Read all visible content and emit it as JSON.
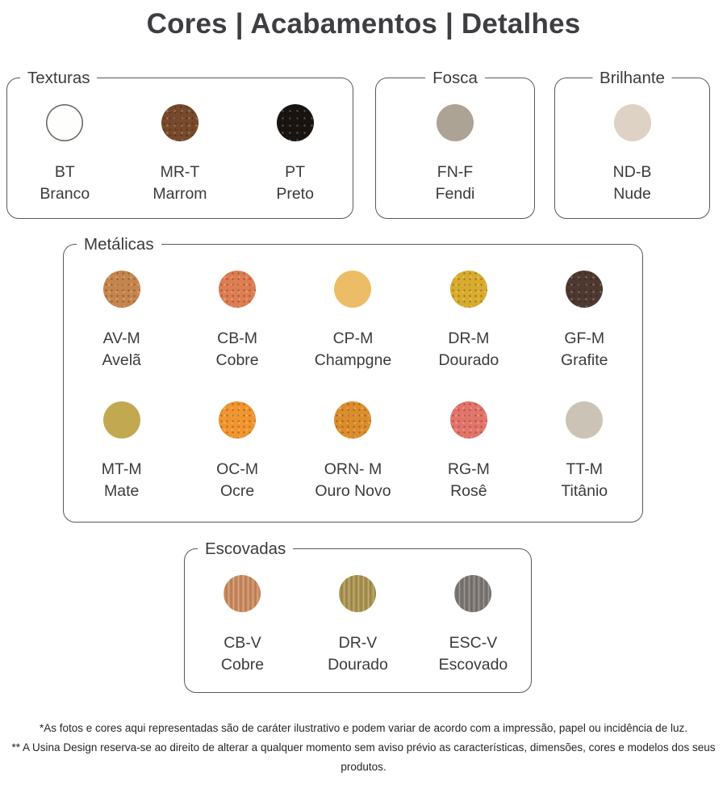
{
  "title": "Cores | Acabamentos | Detalhes",
  "sections": [
    {
      "id": "texturas",
      "label": "Texturas",
      "label_align": "left",
      "swatches": [
        {
          "code": "BT",
          "name": "Branco",
          "color": "#fefefc",
          "ring": "#646464",
          "texture": "plain"
        },
        {
          "code": "MR-T",
          "name": "Marrom",
          "color": "#77492a",
          "texture": "speckle"
        },
        {
          "code": "PT",
          "name": "Preto",
          "color": "#1a1410",
          "texture": "speckle"
        }
      ]
    },
    {
      "id": "fosca",
      "label": "Fosca",
      "label_align": "center",
      "swatches": [
        {
          "code": "FN-F",
          "name": "Fendi",
          "color": "#ada395",
          "texture": "plain"
        }
      ]
    },
    {
      "id": "brilhante",
      "label": "Brilhante",
      "label_align": "center",
      "swatches": [
        {
          "code": "ND-B",
          "name": "Nude",
          "color": "#ddd2c3",
          "texture": "plain"
        }
      ]
    },
    {
      "id": "metalicas",
      "label": "Metálicas",
      "label_align": "left",
      "swatches": [
        {
          "code": "AV-M",
          "name": "Avelã",
          "color": "#c6854e",
          "texture": "speckle"
        },
        {
          "code": "CB-M",
          "name": "Cobre",
          "color": "#dd7d51",
          "texture": "speckle"
        },
        {
          "code": "CP-M",
          "name": "Champgne",
          "color": "#ecbd66",
          "texture": "plain"
        },
        {
          "code": "DR-M",
          "name": "Dourado",
          "color": "#d9ab2d",
          "texture": "speckle"
        },
        {
          "code": "GF-M",
          "name": "Grafite",
          "color": "#4e3931",
          "texture": "speckle"
        },
        {
          "code": "MT-M",
          "name": "Mate",
          "color": "#c2a851",
          "texture": "plain"
        },
        {
          "code": "OC-M",
          "name": "Ocre",
          "color": "#f0952f",
          "texture": "speckle"
        },
        {
          "code": "ORN- M",
          "name": "Ouro Novo",
          "color": "#dc8d2b",
          "texture": "speckle"
        },
        {
          "code": "RG-M",
          "name": "Rosê",
          "color": "#e3746a",
          "texture": "speckle"
        },
        {
          "code": "TT-M",
          "name": "Titânio",
          "color": "#cbc4b6",
          "texture": "plain"
        }
      ]
    },
    {
      "id": "escovadas",
      "label": "Escovadas",
      "label_align": "left",
      "swatches": [
        {
          "code": "CB-V",
          "name": "Cobre",
          "color": "#ca8a5f",
          "texture": "brushed"
        },
        {
          "code": "DR-V",
          "name": "Dourado",
          "color": "#aa9350",
          "texture": "brushed"
        },
        {
          "code": "ESC-V",
          "name": "Escovado",
          "color": "#7c7773",
          "texture": "brushed"
        }
      ]
    }
  ],
  "footnotes": [
    "*As fotos e cores aqui representadas são de caráter ilustrativo e podem variar de acordo com a impressão, papel ou incidência de luz.",
    "** A Usina Design reserva-se ao direito de alterar a qualquer momento sem aviso prévio as características, dimensões, cores e modelos dos seus produtos."
  ]
}
